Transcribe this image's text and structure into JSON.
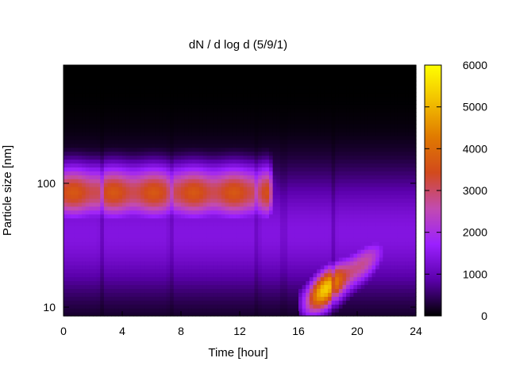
{
  "chart_data": {
    "type": "heatmap",
    "title": "dN / d log d (5/9/1)",
    "xlabel": "Time [hour]",
    "ylabel": "Particle size [nm]",
    "x_range": [
      0,
      24
    ],
    "x_ticks": [
      0,
      4,
      8,
      12,
      16,
      20,
      24
    ],
    "x_tick_labels": [
      "0",
      "4",
      "8",
      "12",
      "16",
      "20",
      "24"
    ],
    "y_scale": "log",
    "y_range": [
      8.5,
      900
    ],
    "y_ticks": [
      10,
      100
    ],
    "y_tick_labels": [
      "10",
      "100"
    ],
    "colorbar": {
      "range": [
        0,
        6000
      ],
      "ticks": [
        0,
        1000,
        2000,
        3000,
        4000,
        5000,
        6000
      ],
      "tick_labels": [
        "0",
        "1000",
        "2000",
        "3000",
        "4000",
        "5000",
        "6000"
      ],
      "palette_stops": [
        "#000000",
        "#5a00aa",
        "#9b20ff",
        "#c24bb0",
        "#d24a1c",
        "#e07a00",
        "#f2c000",
        "#ffff00"
      ]
    },
    "features": [
      {
        "name": "mode",
        "t_start": 0,
        "t_end": 14,
        "center_nm": 85,
        "level": 3400
      },
      {
        "name": "growth",
        "t_start": 16.5,
        "t_end": 22,
        "from_nm": 11,
        "to_nm": 30,
        "peak_level": 5200
      }
    ]
  }
}
